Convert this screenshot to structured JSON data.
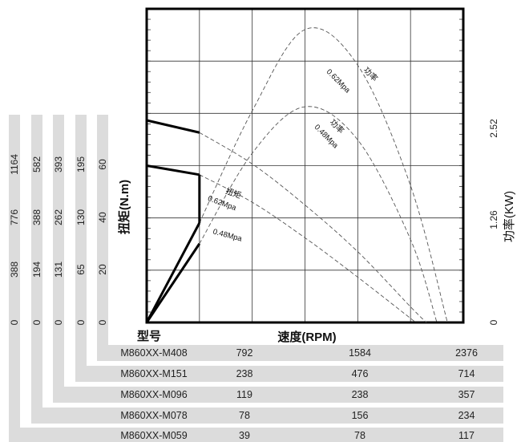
{
  "chart_data": {
    "type": "line",
    "x_axis_label": "速度(RPM)",
    "y_axis_left_label": "扭矩(N.m)",
    "y_axis_right_label": "功率(KW)",
    "model_header": "型号",
    "y_axis_right_ticks": [
      "0",
      "1.26",
      "2.52"
    ],
    "torque_columns": [
      {
        "model": "M860XX-M408",
        "ticks": [
          "0",
          "20",
          "40",
          "60"
        ]
      },
      {
        "model": "M860XX-M151",
        "ticks": [
          "0",
          "65",
          "130",
          "195"
        ]
      },
      {
        "model": "M860XX-M096",
        "ticks": [
          "0",
          "131",
          "262",
          "393"
        ]
      },
      {
        "model": "M860XX-M078",
        "ticks": [
          "0",
          "194",
          "388",
          "582"
        ]
      },
      {
        "model": "M860XX-M059",
        "ticks": [
          "0",
          "388",
          "776",
          "1164"
        ]
      }
    ],
    "speed_rows": [
      {
        "model": "M860XX-M408",
        "values": [
          "792",
          "1584",
          "2376"
        ]
      },
      {
        "model": "M860XX-M151",
        "values": [
          "238",
          "476",
          "714"
        ]
      },
      {
        "model": "M860XX-M096",
        "values": [
          "119",
          "238",
          "357"
        ]
      },
      {
        "model": "M860XX-M078",
        "values": [
          "78",
          "156",
          "234"
        ]
      },
      {
        "model": "M860XX-M059",
        "values": [
          "39",
          "78",
          "117"
        ]
      }
    ],
    "axis_units": {
      "x_max": 6,
      "y_torque_max": 90,
      "y_power_max": 3.78
    },
    "series": [
      {
        "name": "扭矩 0.62Mpa",
        "kind": "torque",
        "style": "solid",
        "points": [
          [
            0,
            58
          ],
          [
            1,
            54.5
          ],
          [
            2,
            45.5
          ],
          [
            3,
            33.7
          ],
          [
            4,
            20.3
          ],
          [
            5,
            4.5
          ],
          [
            5.3,
            0
          ]
        ]
      },
      {
        "name": "扭矩 0.48Mpa",
        "kind": "torque",
        "style": "solid",
        "points": [
          [
            0,
            45
          ],
          [
            1,
            42.4
          ],
          [
            2,
            34.5
          ],
          [
            3,
            24.3
          ],
          [
            4,
            13
          ],
          [
            5.1,
            0
          ]
        ]
      },
      {
        "name": "功率 0.62Mpa",
        "kind": "power",
        "style": "solid",
        "points": [
          [
            0,
            0
          ],
          [
            1,
            1.2
          ],
          [
            2,
            2.55
          ],
          [
            3,
            3.53
          ],
          [
            4,
            3.1
          ],
          [
            5,
            1.65
          ],
          [
            5.7,
            0
          ]
        ]
      },
      {
        "name": "功率 0.48Mpa",
        "kind": "power",
        "style": "solid",
        "points": [
          [
            0,
            0
          ],
          [
            1,
            0.95
          ],
          [
            2,
            2.04
          ],
          [
            3,
            2.6
          ],
          [
            4,
            2.2
          ],
          [
            5,
            1.0
          ],
          [
            5.5,
            0
          ]
        ]
      }
    ],
    "curve_labels": [
      {
        "text": "功率",
        "series": 2
      },
      {
        "text": "0.62Mpa",
        "series": 2
      },
      {
        "text": "功率",
        "series": 3
      },
      {
        "text": "0.48Mpa",
        "series": 3
      },
      {
        "text": "扭矩",
        "series": 0
      },
      {
        "text": "0.62Mpa",
        "series": 0
      },
      {
        "text": "0.48Mpa",
        "series": 1
      }
    ],
    "grid": true
  }
}
